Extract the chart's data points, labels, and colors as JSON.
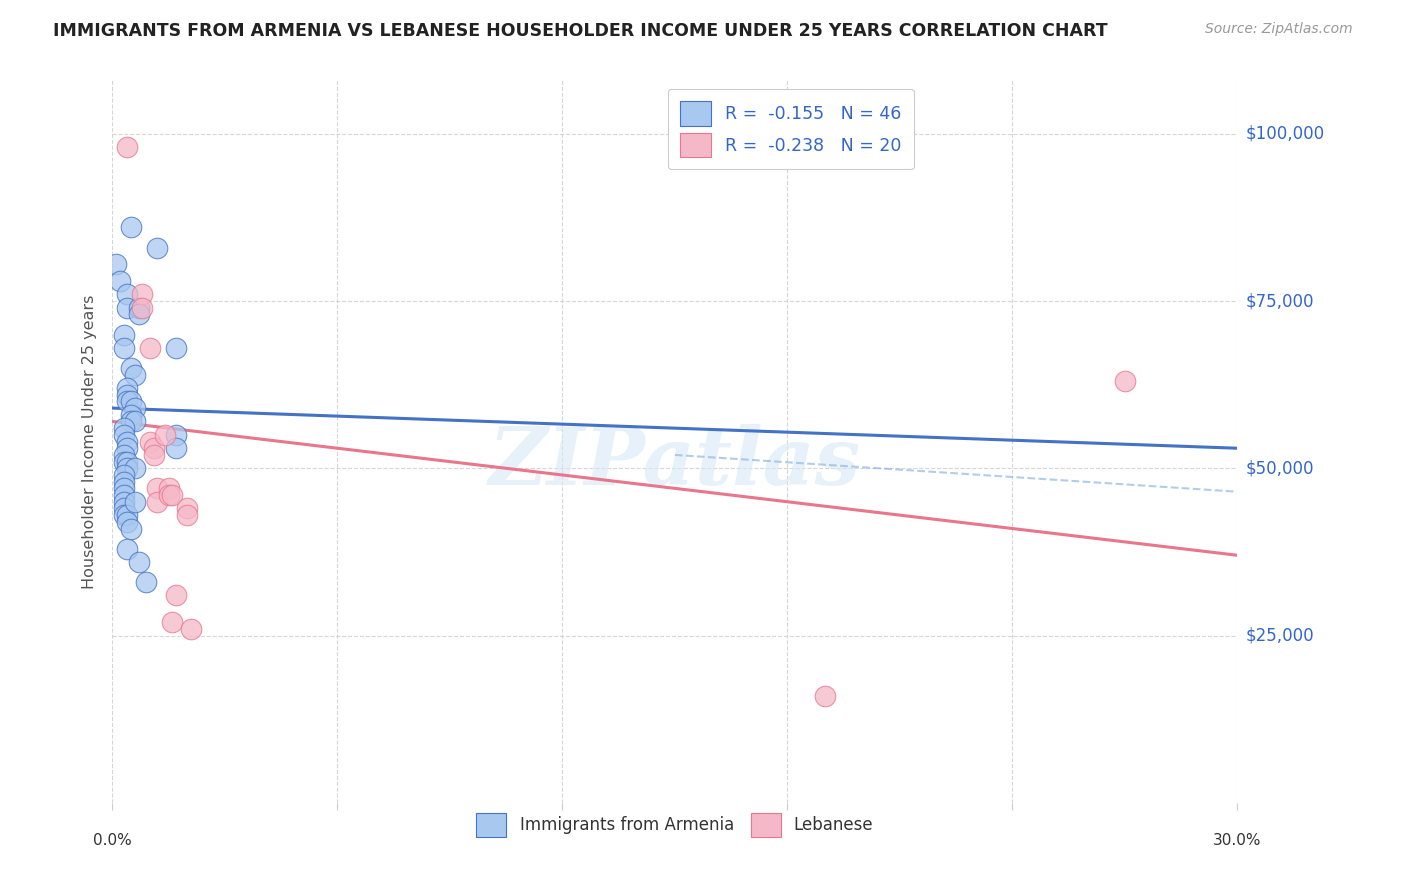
{
  "title": "IMMIGRANTS FROM ARMENIA VS LEBANESE HOUSEHOLDER INCOME UNDER 25 YEARS CORRELATION CHART",
  "source": "Source: ZipAtlas.com",
  "ylabel": "Householder Income Under 25 years",
  "ytick_labels": [
    "$25,000",
    "$50,000",
    "$75,000",
    "$100,000"
  ],
  "ytick_values": [
    25000,
    50000,
    75000,
    100000
  ],
  "ylim": [
    0,
    108000
  ],
  "xlim": [
    0.0,
    0.3
  ],
  "blue_color": "#A8C8F0",
  "pink_color": "#F5B8C8",
  "line_blue": "#4472C4",
  "line_pink": "#E8768C",
  "watermark": "ZIPatlas",
  "armenia_points": [
    [
      0.001,
      80500
    ],
    [
      0.005,
      86000
    ],
    [
      0.012,
      83000
    ],
    [
      0.002,
      78000
    ],
    [
      0.004,
      76000
    ],
    [
      0.004,
      74000
    ],
    [
      0.007,
      74000
    ],
    [
      0.007,
      73000
    ],
    [
      0.003,
      70000
    ],
    [
      0.003,
      68000
    ],
    [
      0.005,
      65000
    ],
    [
      0.006,
      64000
    ],
    [
      0.004,
      62000
    ],
    [
      0.004,
      61000
    ],
    [
      0.004,
      60000
    ],
    [
      0.005,
      60000
    ],
    [
      0.006,
      59000
    ],
    [
      0.005,
      58000
    ],
    [
      0.005,
      57000
    ],
    [
      0.006,
      57000
    ],
    [
      0.003,
      56000
    ],
    [
      0.003,
      55000
    ],
    [
      0.004,
      54000
    ],
    [
      0.004,
      53000
    ],
    [
      0.003,
      52000
    ],
    [
      0.003,
      51000
    ],
    [
      0.004,
      51000
    ],
    [
      0.004,
      50000
    ],
    [
      0.006,
      50000
    ],
    [
      0.017,
      68000
    ],
    [
      0.017,
      55000
    ],
    [
      0.017,
      53000
    ],
    [
      0.003,
      49000
    ],
    [
      0.003,
      48000
    ],
    [
      0.003,
      47000
    ],
    [
      0.003,
      46000
    ],
    [
      0.003,
      45000
    ],
    [
      0.003,
      44000
    ],
    [
      0.003,
      43000
    ],
    [
      0.004,
      43000
    ],
    [
      0.004,
      42000
    ],
    [
      0.006,
      45000
    ],
    [
      0.005,
      41000
    ],
    [
      0.004,
      38000
    ],
    [
      0.007,
      36000
    ],
    [
      0.009,
      33000
    ]
  ],
  "lebanese_points": [
    [
      0.004,
      98000
    ],
    [
      0.008,
      76000
    ],
    [
      0.008,
      74000
    ],
    [
      0.01,
      68000
    ],
    [
      0.01,
      54000
    ],
    [
      0.011,
      53000
    ],
    [
      0.011,
      52000
    ],
    [
      0.014,
      55000
    ],
    [
      0.012,
      47000
    ],
    [
      0.012,
      45000
    ],
    [
      0.015,
      47000
    ],
    [
      0.015,
      46000
    ],
    [
      0.016,
      46000
    ],
    [
      0.02,
      44000
    ],
    [
      0.02,
      43000
    ],
    [
      0.017,
      31000
    ],
    [
      0.016,
      27000
    ],
    [
      0.021,
      26000
    ],
    [
      0.19,
      16000
    ],
    [
      0.27,
      63000
    ]
  ],
  "armenia_line": [
    0.0,
    0.3,
    59000,
    53000
  ],
  "lebanese_line": [
    0.0,
    0.3,
    57000,
    37000
  ],
  "armenia_ci_line": [
    0.15,
    0.3,
    52000,
    46500
  ]
}
